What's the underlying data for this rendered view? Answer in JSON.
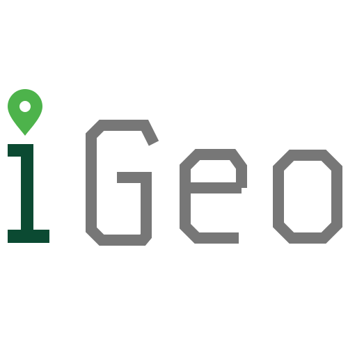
{
  "logo": {
    "wordmark": "iGeo",
    "colors": {
      "pin": "#4db34b",
      "pin_hole": "#ffffff",
      "i_stem": "#0b4a32",
      "letters": "#777777"
    },
    "icons": {
      "pin": "map-pin-icon"
    }
  }
}
